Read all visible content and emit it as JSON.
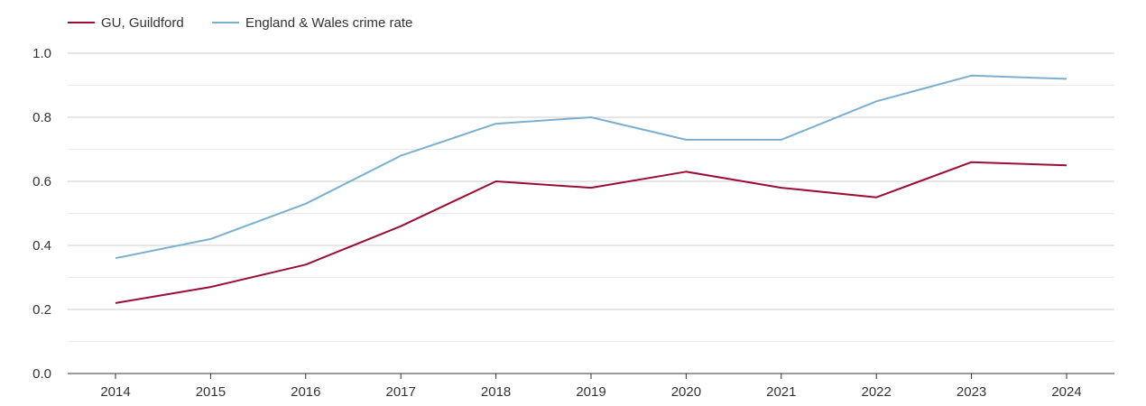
{
  "chart_data": {
    "type": "line",
    "title": "",
    "xlabel": "",
    "ylabel": "",
    "x": [
      "2014",
      "2015",
      "2016",
      "2017",
      "2018",
      "2019",
      "2020",
      "2021",
      "2022",
      "2023",
      "2024"
    ],
    "ylim": [
      0,
      1
    ],
    "yticks": [
      "0.0",
      "0.2",
      "0.4",
      "0.6",
      "0.8",
      "1.0"
    ],
    "grid": true,
    "legend_position": "top-left",
    "series": [
      {
        "name": "GU, Guildford",
        "color": "#9b0e34",
        "values": [
          0.22,
          0.27,
          0.34,
          0.46,
          0.6,
          0.58,
          0.63,
          0.58,
          0.55,
          0.66,
          0.65
        ]
      },
      {
        "name": "England & Wales crime rate",
        "color": "#7aafd0",
        "values": [
          0.36,
          0.42,
          0.53,
          0.68,
          0.78,
          0.8,
          0.73,
          0.73,
          0.85,
          0.93,
          0.92
        ]
      }
    ]
  }
}
